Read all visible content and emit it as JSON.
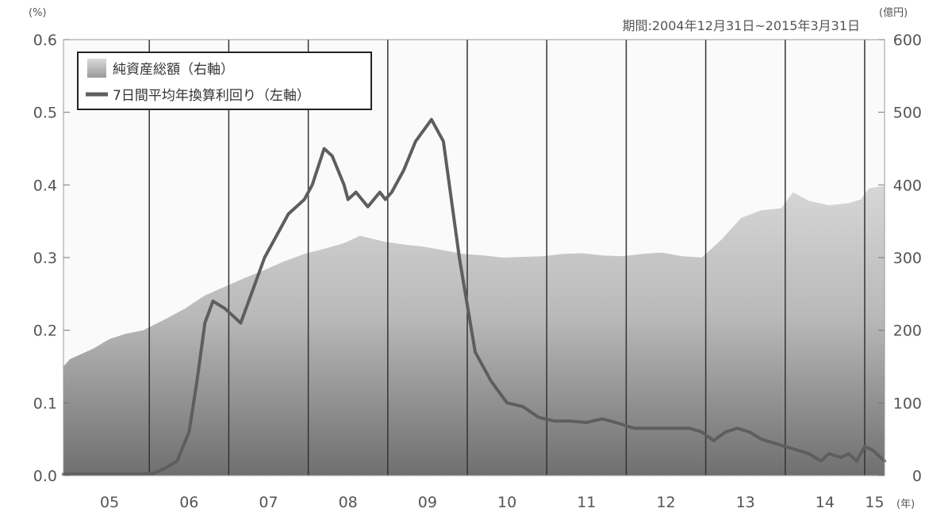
{
  "chart_data": {
    "type": "area",
    "period_note": "期間:2004年12月31日~2015年3月31日",
    "left_axis": {
      "unit": "(%)",
      "ticks": [
        "0.0",
        "0.1",
        "0.2",
        "0.3",
        "0.4",
        "0.5",
        "0.6"
      ],
      "ylim": [
        0,
        0.6
      ]
    },
    "right_axis": {
      "unit": "(億円)",
      "ticks": [
        "0",
        "100",
        "200",
        "300",
        "400",
        "500",
        "600"
      ],
      "ylim": [
        0,
        600
      ]
    },
    "x_axis": {
      "unit": "(年)",
      "categories": [
        "05",
        "06",
        "07",
        "08",
        "09",
        "10",
        "11",
        "12",
        "13",
        "14",
        "15"
      ],
      "xlim": [
        2004.92,
        2015.25
      ]
    },
    "grid": "vertical year lines",
    "legend": {
      "position": "top-left",
      "items": [
        {
          "label": "純資産総額（右軸）",
          "style": "area",
          "color": "#b8b8b8"
        },
        {
          "label": "7日間平均年換算利回り（左軸）",
          "style": "line",
          "color": "#5e5e5e"
        }
      ]
    },
    "series": [
      {
        "name": "純資産総額（右軸）",
        "axis": "right",
        "x": [
          2004.92,
          2005.0,
          2005.3,
          2005.5,
          2005.7,
          2005.92,
          2006.2,
          2006.45,
          2006.7,
          2006.95,
          2007.2,
          2007.45,
          2007.7,
          2007.95,
          2008.2,
          2008.45,
          2008.65,
          2008.95,
          2009.2,
          2009.45,
          2009.7,
          2009.95,
          2010.2,
          2010.45,
          2010.7,
          2010.95,
          2011.2,
          2011.45,
          2011.7,
          2011.95,
          2012.2,
          2012.45,
          2012.7,
          2012.95,
          2013.2,
          2013.45,
          2013.7,
          2013.95,
          2014.1,
          2014.3,
          2014.55,
          2014.8,
          2014.95,
          2015.05,
          2015.2,
          2015.25
        ],
        "values": [
          150,
          160,
          175,
          188,
          195,
          200,
          215,
          230,
          248,
          260,
          272,
          283,
          295,
          305,
          312,
          320,
          330,
          322,
          318,
          315,
          310,
          305,
          303,
          300,
          301,
          302,
          305,
          306,
          303,
          302,
          305,
          307,
          302,
          300,
          325,
          355,
          365,
          368,
          390,
          378,
          372,
          375,
          380,
          395,
          398,
          398
        ]
      },
      {
        "name": "7日間平均年換算利回り（左軸）",
        "axis": "left",
        "x": [
          2004.92,
          2005.5,
          2005.92,
          2006.05,
          2006.2,
          2006.35,
          2006.5,
          2006.6,
          2006.7,
          2006.8,
          2006.95,
          2007.05,
          2007.15,
          2007.25,
          2007.35,
          2007.45,
          2007.6,
          2007.75,
          2007.95,
          2008.05,
          2008.2,
          2008.3,
          2008.45,
          2008.5,
          2008.6,
          2008.75,
          2008.9,
          2008.97,
          2009.05,
          2009.2,
          2009.35,
          2009.55,
          2009.7,
          2009.9,
          2010.1,
          2010.3,
          2010.5,
          2010.7,
          2010.9,
          2011.1,
          2011.3,
          2011.5,
          2011.7,
          2011.9,
          2012.1,
          2012.3,
          2012.5,
          2012.65,
          2012.8,
          2012.95,
          2013.1,
          2013.25,
          2013.4,
          2013.55,
          2013.7,
          2013.85,
          2014.0,
          2014.15,
          2014.3,
          2014.45,
          2014.55,
          2014.7,
          2014.8,
          2014.9,
          2015.0,
          2015.1,
          2015.2,
          2015.25
        ],
        "values": [
          0.002,
          0.002,
          0.002,
          0.003,
          0.01,
          0.02,
          0.06,
          0.13,
          0.21,
          0.24,
          0.23,
          0.22,
          0.21,
          0.24,
          0.27,
          0.3,
          0.33,
          0.36,
          0.38,
          0.4,
          0.45,
          0.44,
          0.4,
          0.38,
          0.39,
          0.37,
          0.39,
          0.38,
          0.39,
          0.42,
          0.46,
          0.49,
          0.46,
          0.3,
          0.17,
          0.13,
          0.1,
          0.095,
          0.08,
          0.075,
          0.075,
          0.073,
          0.078,
          0.072,
          0.065,
          0.065,
          0.065,
          0.065,
          0.065,
          0.06,
          0.048,
          0.06,
          0.065,
          0.06,
          0.05,
          0.045,
          0.04,
          0.035,
          0.03,
          0.02,
          0.03,
          0.025,
          0.03,
          0.02,
          0.04,
          0.035,
          0.025,
          0.02
        ]
      }
    ]
  }
}
